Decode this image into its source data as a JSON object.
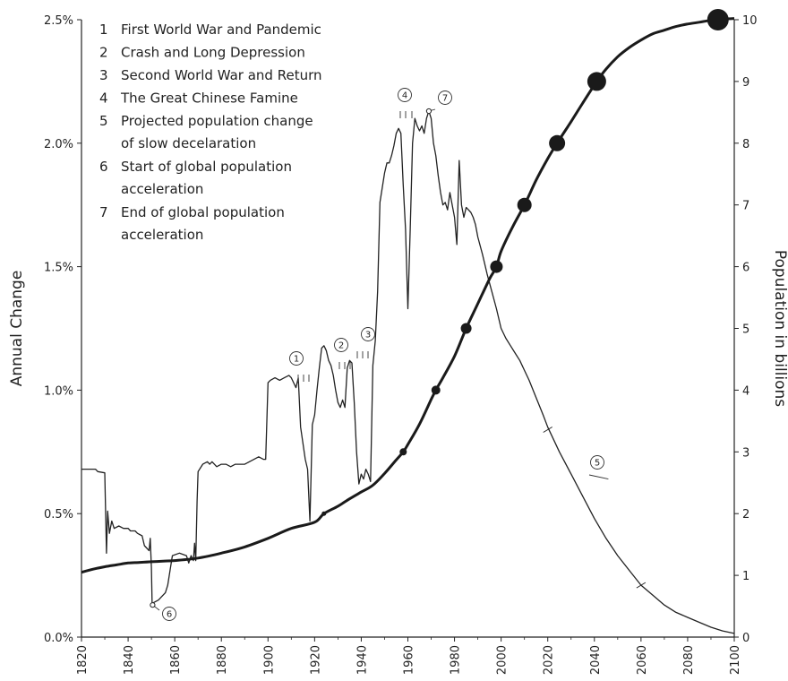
{
  "chart_data": {
    "type": "line",
    "title": "",
    "xlim": [
      1820,
      2100
    ],
    "x_ticks": [
      "1820",
      "1840",
      "1860",
      "1880",
      "1900",
      "1920",
      "1940",
      "1960",
      "1980",
      "2000",
      "2020",
      "2040",
      "2060",
      "2080",
      "2100"
    ],
    "y_left": {
      "label": "Annual Change",
      "lim": [
        0,
        2.5
      ],
      "ticks": [
        {
          "v": 0,
          "label": "0.0%"
        },
        {
          "v": 0.5,
          "label": "0.5%"
        },
        {
          "v": 1.0,
          "label": "1.0%"
        },
        {
          "v": 1.5,
          "label": "1.5%"
        },
        {
          "v": 2.0,
          "label": "2.0%"
        },
        {
          "v": 2.5,
          "label": "2.5%"
        }
      ]
    },
    "y_right": {
      "label": "Population in billions",
      "lim": [
        0,
        10
      ],
      "ticks": [
        "0",
        "1",
        "2",
        "3",
        "4",
        "5",
        "6",
        "7",
        "8",
        "9",
        "10"
      ]
    },
    "legend": {
      "placement": "top-left",
      "items": [
        {
          "num": "1",
          "lines": [
            "First World War and Pandemic"
          ]
        },
        {
          "num": "2",
          "lines": [
            "Crash and Long Depression"
          ]
        },
        {
          "num": "3",
          "lines": [
            "Second World War and Return"
          ]
        },
        {
          "num": "4",
          "lines": [
            "The Great Chinese Famine"
          ]
        },
        {
          "num": "5",
          "lines": [
            "Projected population change",
            "of slow decelaration"
          ]
        },
        {
          "num": "6",
          "lines": [
            "Start of global population",
            "acceleration"
          ]
        },
        {
          "num": "7",
          "lines": [
            "End of global population",
            "acceleration"
          ]
        }
      ]
    },
    "series": [
      {
        "axis": "left",
        "points": [
          [
            1820,
            0.68
          ],
          [
            1826,
            0.68
          ],
          [
            1827,
            0.67
          ],
          [
            1830,
            0.665
          ],
          [
            1830.7,
            0.34
          ],
          [
            1831.2,
            0.51
          ],
          [
            1832,
            0.42
          ],
          [
            1833,
            0.47
          ],
          [
            1834,
            0.44
          ],
          [
            1836,
            0.45
          ],
          [
            1838,
            0.44
          ],
          [
            1840,
            0.44
          ],
          [
            1841,
            0.43
          ],
          [
            1843,
            0.43
          ],
          [
            1844,
            0.42
          ],
          [
            1846,
            0.41
          ],
          [
            1847,
            0.37
          ],
          [
            1849,
            0.35
          ],
          [
            1849.5,
            0.4
          ],
          [
            1850,
            0.28
          ],
          [
            1850.3,
            0.13
          ],
          [
            1851,
            0.14
          ],
          [
            1853,
            0.15
          ],
          [
            1856,
            0.18
          ],
          [
            1857,
            0.21
          ],
          [
            1859,
            0.33
          ],
          [
            1862,
            0.34
          ],
          [
            1865,
            0.33
          ],
          [
            1866,
            0.3
          ],
          [
            1867,
            0.33
          ],
          [
            1868,
            0.31
          ],
          [
            1868.5,
            0.38
          ],
          [
            1869,
            0.31
          ],
          [
            1869.6,
            0.55
          ],
          [
            1870,
            0.67
          ],
          [
            1872,
            0.7
          ],
          [
            1874,
            0.71
          ],
          [
            1875,
            0.7
          ],
          [
            1876,
            0.71
          ],
          [
            1878,
            0.69
          ],
          [
            1880,
            0.7
          ],
          [
            1882,
            0.7
          ],
          [
            1884,
            0.69
          ],
          [
            1886,
            0.7
          ],
          [
            1888,
            0.7
          ],
          [
            1890,
            0.7
          ],
          [
            1892,
            0.71
          ],
          [
            1894,
            0.72
          ],
          [
            1896,
            0.73
          ],
          [
            1898,
            0.72
          ],
          [
            1899,
            0.72
          ],
          [
            1900,
            1.03
          ],
          [
            1901,
            1.04
          ],
          [
            1903,
            1.05
          ],
          [
            1905,
            1.04
          ],
          [
            1907,
            1.05
          ],
          [
            1909,
            1.06
          ],
          [
            1910,
            1.05
          ],
          [
            1911,
            1.03
          ],
          [
            1912,
            1.01
          ],
          [
            1913,
            1.05
          ],
          [
            1914,
            0.85
          ],
          [
            1916,
            0.72
          ],
          [
            1917,
            0.68
          ],
          [
            1918,
            0.47
          ],
          [
            1919,
            0.86
          ],
          [
            1920,
            0.9
          ],
          [
            1921,
            1.0
          ],
          [
            1922,
            1.09
          ],
          [
            1923,
            1.17
          ],
          [
            1924,
            1.18
          ],
          [
            1925,
            1.16
          ],
          [
            1926,
            1.12
          ],
          [
            1927,
            1.1
          ],
          [
            1928,
            1.06
          ],
          [
            1929,
            1.0
          ],
          [
            1930,
            0.95
          ],
          [
            1931,
            0.93
          ],
          [
            1932,
            0.96
          ],
          [
            1933,
            0.93
          ],
          [
            1934,
            1.09
          ],
          [
            1935,
            1.12
          ],
          [
            1936,
            1.11
          ],
          [
            1937,
            0.95
          ],
          [
            1938,
            0.75
          ],
          [
            1939,
            0.62
          ],
          [
            1940,
            0.66
          ],
          [
            1941,
            0.64
          ],
          [
            1942,
            0.68
          ],
          [
            1943,
            0.66
          ],
          [
            1944,
            0.63
          ],
          [
            1945,
            1.1
          ],
          [
            1946,
            1.2
          ],
          [
            1947,
            1.4
          ],
          [
            1948,
            1.76
          ],
          [
            1949,
            1.82
          ],
          [
            1950,
            1.88
          ],
          [
            1951,
            1.92
          ],
          [
            1952,
            1.92
          ],
          [
            1953,
            1.95
          ],
          [
            1954,
            1.99
          ],
          [
            1955,
            2.04
          ],
          [
            1956,
            2.06
          ],
          [
            1957,
            2.04
          ],
          [
            1958,
            1.83
          ],
          [
            1959,
            1.65
          ],
          [
            1960,
            1.33
          ],
          [
            1961,
            1.65
          ],
          [
            1962,
            2.0
          ],
          [
            1963,
            2.1
          ],
          [
            1964,
            2.07
          ],
          [
            1965,
            2.05
          ],
          [
            1966,
            2.07
          ],
          [
            1967,
            2.04
          ],
          [
            1968,
            2.1
          ],
          [
            1969,
            2.13
          ],
          [
            1970,
            2.1
          ],
          [
            1971,
            2.0
          ],
          [
            1972,
            1.95
          ],
          [
            1973,
            1.87
          ],
          [
            1974,
            1.8
          ],
          [
            1975,
            1.75
          ],
          [
            1976,
            1.76
          ],
          [
            1977,
            1.73
          ],
          [
            1978,
            1.8
          ],
          [
            1979,
            1.75
          ],
          [
            1980,
            1.7
          ],
          [
            1981,
            1.59
          ],
          [
            1982,
            1.93
          ],
          [
            1983,
            1.75
          ],
          [
            1984,
            1.7
          ],
          [
            1985,
            1.74
          ],
          [
            1986,
            1.73
          ],
          [
            1987,
            1.72
          ],
          [
            1988,
            1.7
          ],
          [
            1989,
            1.67
          ],
          [
            1990,
            1.62
          ],
          [
            1992,
            1.55
          ],
          [
            1994,
            1.47
          ],
          [
            1996,
            1.4
          ],
          [
            1998,
            1.33
          ],
          [
            2000,
            1.25
          ],
          [
            2002,
            1.21
          ],
          [
            2004,
            1.18
          ],
          [
            2006,
            1.15
          ],
          [
            2008,
            1.12
          ],
          [
            2010,
            1.08
          ],
          [
            2012,
            1.04
          ],
          [
            2015,
            0.97
          ],
          [
            2018,
            0.9
          ],
          [
            2020,
            0.85
          ],
          [
            2025,
            0.75
          ],
          [
            2030,
            0.66
          ],
          [
            2035,
            0.57
          ],
          [
            2040,
            0.48
          ],
          [
            2045,
            0.4
          ],
          [
            2050,
            0.33
          ],
          [
            2055,
            0.27
          ],
          [
            2060,
            0.21
          ],
          [
            2065,
            0.17
          ],
          [
            2070,
            0.13
          ],
          [
            2075,
            0.1
          ],
          [
            2080,
            0.08
          ],
          [
            2085,
            0.06
          ],
          [
            2090,
            0.04
          ],
          [
            2095,
            0.025
          ],
          [
            2100,
            0.015
          ]
        ]
      },
      {
        "axis": "right",
        "points": [
          [
            1820,
            1.05
          ],
          [
            1825,
            1.1
          ],
          [
            1830,
            1.14
          ],
          [
            1835,
            1.17
          ],
          [
            1840,
            1.2
          ],
          [
            1845,
            1.21
          ],
          [
            1850,
            1.22
          ],
          [
            1855,
            1.23
          ],
          [
            1860,
            1.24
          ],
          [
            1870,
            1.28
          ],
          [
            1880,
            1.36
          ],
          [
            1890,
            1.46
          ],
          [
            1900,
            1.6
          ],
          [
            1910,
            1.76
          ],
          [
            1920,
            1.86
          ],
          [
            1924,
            2.0
          ],
          [
            1930,
            2.12
          ],
          [
            1935,
            2.24
          ],
          [
            1940,
            2.35
          ],
          [
            1945,
            2.46
          ],
          [
            1950,
            2.65
          ],
          [
            1955,
            2.87
          ],
          [
            1958,
            3.0
          ],
          [
            1960,
            3.12
          ],
          [
            1965,
            3.45
          ],
          [
            1970,
            3.85
          ],
          [
            1972,
            4.0
          ],
          [
            1975,
            4.2
          ],
          [
            1980,
            4.55
          ],
          [
            1985,
            5.0
          ],
          [
            1990,
            5.4
          ],
          [
            1995,
            5.8
          ],
          [
            1998,
            6.0
          ],
          [
            2000,
            6.25
          ],
          [
            2005,
            6.65
          ],
          [
            2010,
            7.0
          ],
          [
            2015,
            7.4
          ],
          [
            2020,
            7.75
          ],
          [
            2024,
            8.0
          ],
          [
            2030,
            8.35
          ],
          [
            2035,
            8.65
          ],
          [
            2041,
            9.0
          ],
          [
            2045,
            9.2
          ],
          [
            2050,
            9.4
          ],
          [
            2055,
            9.55
          ],
          [
            2060,
            9.67
          ],
          [
            2065,
            9.77
          ],
          [
            2070,
            9.83
          ],
          [
            2075,
            9.89
          ],
          [
            2080,
            9.93
          ],
          [
            2085,
            9.96
          ],
          [
            2090,
            9.99
          ],
          [
            2095,
            10.01
          ],
          [
            2100,
            10.02
          ]
        ],
        "markers": [
          {
            "x": 1924,
            "y": 2
          },
          {
            "x": 1958,
            "y": 3
          },
          {
            "x": 1972,
            "y": 4
          },
          {
            "x": 1985,
            "y": 5
          },
          {
            "x": 1998,
            "y": 6
          },
          {
            "x": 2010,
            "y": 7
          },
          {
            "x": 2024,
            "y": 8
          },
          {
            "x": 2041,
            "y": 9
          },
          {
            "x": 2093,
            "y": 10
          }
        ]
      }
    ],
    "annotations": [
      {
        "num": "1",
        "x": 1915,
        "y": 1.05
      },
      {
        "num": "2",
        "x": 1932,
        "y": 1.11
      },
      {
        "num": "3",
        "x": 1941,
        "y": 1.16
      },
      {
        "num": "4",
        "x": 1959,
        "y": 2.15
      },
      {
        "num": "5",
        "x": 2046,
        "y": 0.64
      },
      {
        "num": "6",
        "x": 1850.5,
        "y": 0.13
      },
      {
        "num": "7",
        "x": 1969,
        "y": 2.13
      }
    ]
  }
}
